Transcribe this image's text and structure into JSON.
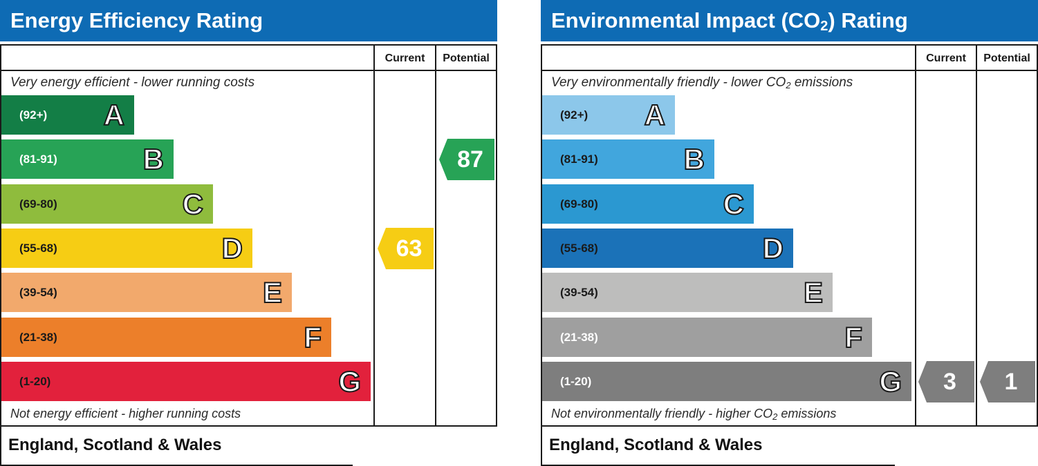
{
  "chart_data": [
    {
      "type": "bar",
      "title": "Energy Efficiency Rating",
      "columns": [
        "Current",
        "Potential"
      ],
      "top_caption": "Very energy efficient - lower running costs",
      "bottom_caption": "Not energy efficient - higher running costs",
      "footer": "England, Scotland & Wales",
      "bands": [
        {
          "letter": "A",
          "range": "(92+)",
          "color": "#137e46",
          "text_color": "#ffffff"
        },
        {
          "letter": "B",
          "range": "(81-91)",
          "color": "#27a356",
          "text_color": "#ffffff"
        },
        {
          "letter": "C",
          "range": "(69-80)",
          "color": "#8fbc3d",
          "text_color": "#1a1a1a"
        },
        {
          "letter": "D",
          "range": "(55-68)",
          "color": "#f6cd14",
          "text_color": "#1a1a1a"
        },
        {
          "letter": "E",
          "range": "(39-54)",
          "color": "#f2a96c",
          "text_color": "#1a1a1a"
        },
        {
          "letter": "F",
          "range": "(21-38)",
          "color": "#ec7f2a",
          "text_color": "#1a1a1a"
        },
        {
          "letter": "G",
          "range": "(1-20)",
          "color": "#e2213c",
          "text_color": "#1a1a1a"
        }
      ],
      "current": {
        "value": "63",
        "band": "D",
        "color": "#f6cd14"
      },
      "potential": {
        "value": "87",
        "band": "B",
        "color": "#27a356"
      }
    },
    {
      "type": "bar",
      "title_prefix": "Environmental Impact (CO",
      "title_sub": "2",
      "title_suffix": ") Rating",
      "columns": [
        "Current",
        "Potential"
      ],
      "top_caption_prefix": "Very environmentally friendly - lower CO",
      "top_caption_sub": "2",
      "top_caption_suffix": " emissions",
      "bottom_caption_prefix": "Not environmentally friendly - higher CO",
      "bottom_caption_sub": "2",
      "bottom_caption_suffix": " emissions",
      "footer": "England, Scotland & Wales",
      "bands": [
        {
          "letter": "A",
          "range": "(92+)",
          "color": "#8cc7ea",
          "text_color": "#1a1a1a"
        },
        {
          "letter": "B",
          "range": "(81-91)",
          "color": "#41a6dd",
          "text_color": "#1a1a1a"
        },
        {
          "letter": "C",
          "range": "(69-80)",
          "color": "#2b98d1",
          "text_color": "#1a1a1a"
        },
        {
          "letter": "D",
          "range": "(55-68)",
          "color": "#1b72b8",
          "text_color": "#1a1a1a"
        },
        {
          "letter": "E",
          "range": "(39-54)",
          "color": "#bdbdbc",
          "text_color": "#1a1a1a"
        },
        {
          "letter": "F",
          "range": "(21-38)",
          "color": "#9f9f9f",
          "text_color": "#ffffff"
        },
        {
          "letter": "G",
          "range": "(1-20)",
          "color": "#7e7e7e",
          "text_color": "#ffffff"
        }
      ],
      "current": {
        "value": "3",
        "band": "G",
        "color": "#7e7e7e"
      },
      "potential": {
        "value": "1",
        "band": "G",
        "color": "#7e7e7e"
      }
    }
  ]
}
